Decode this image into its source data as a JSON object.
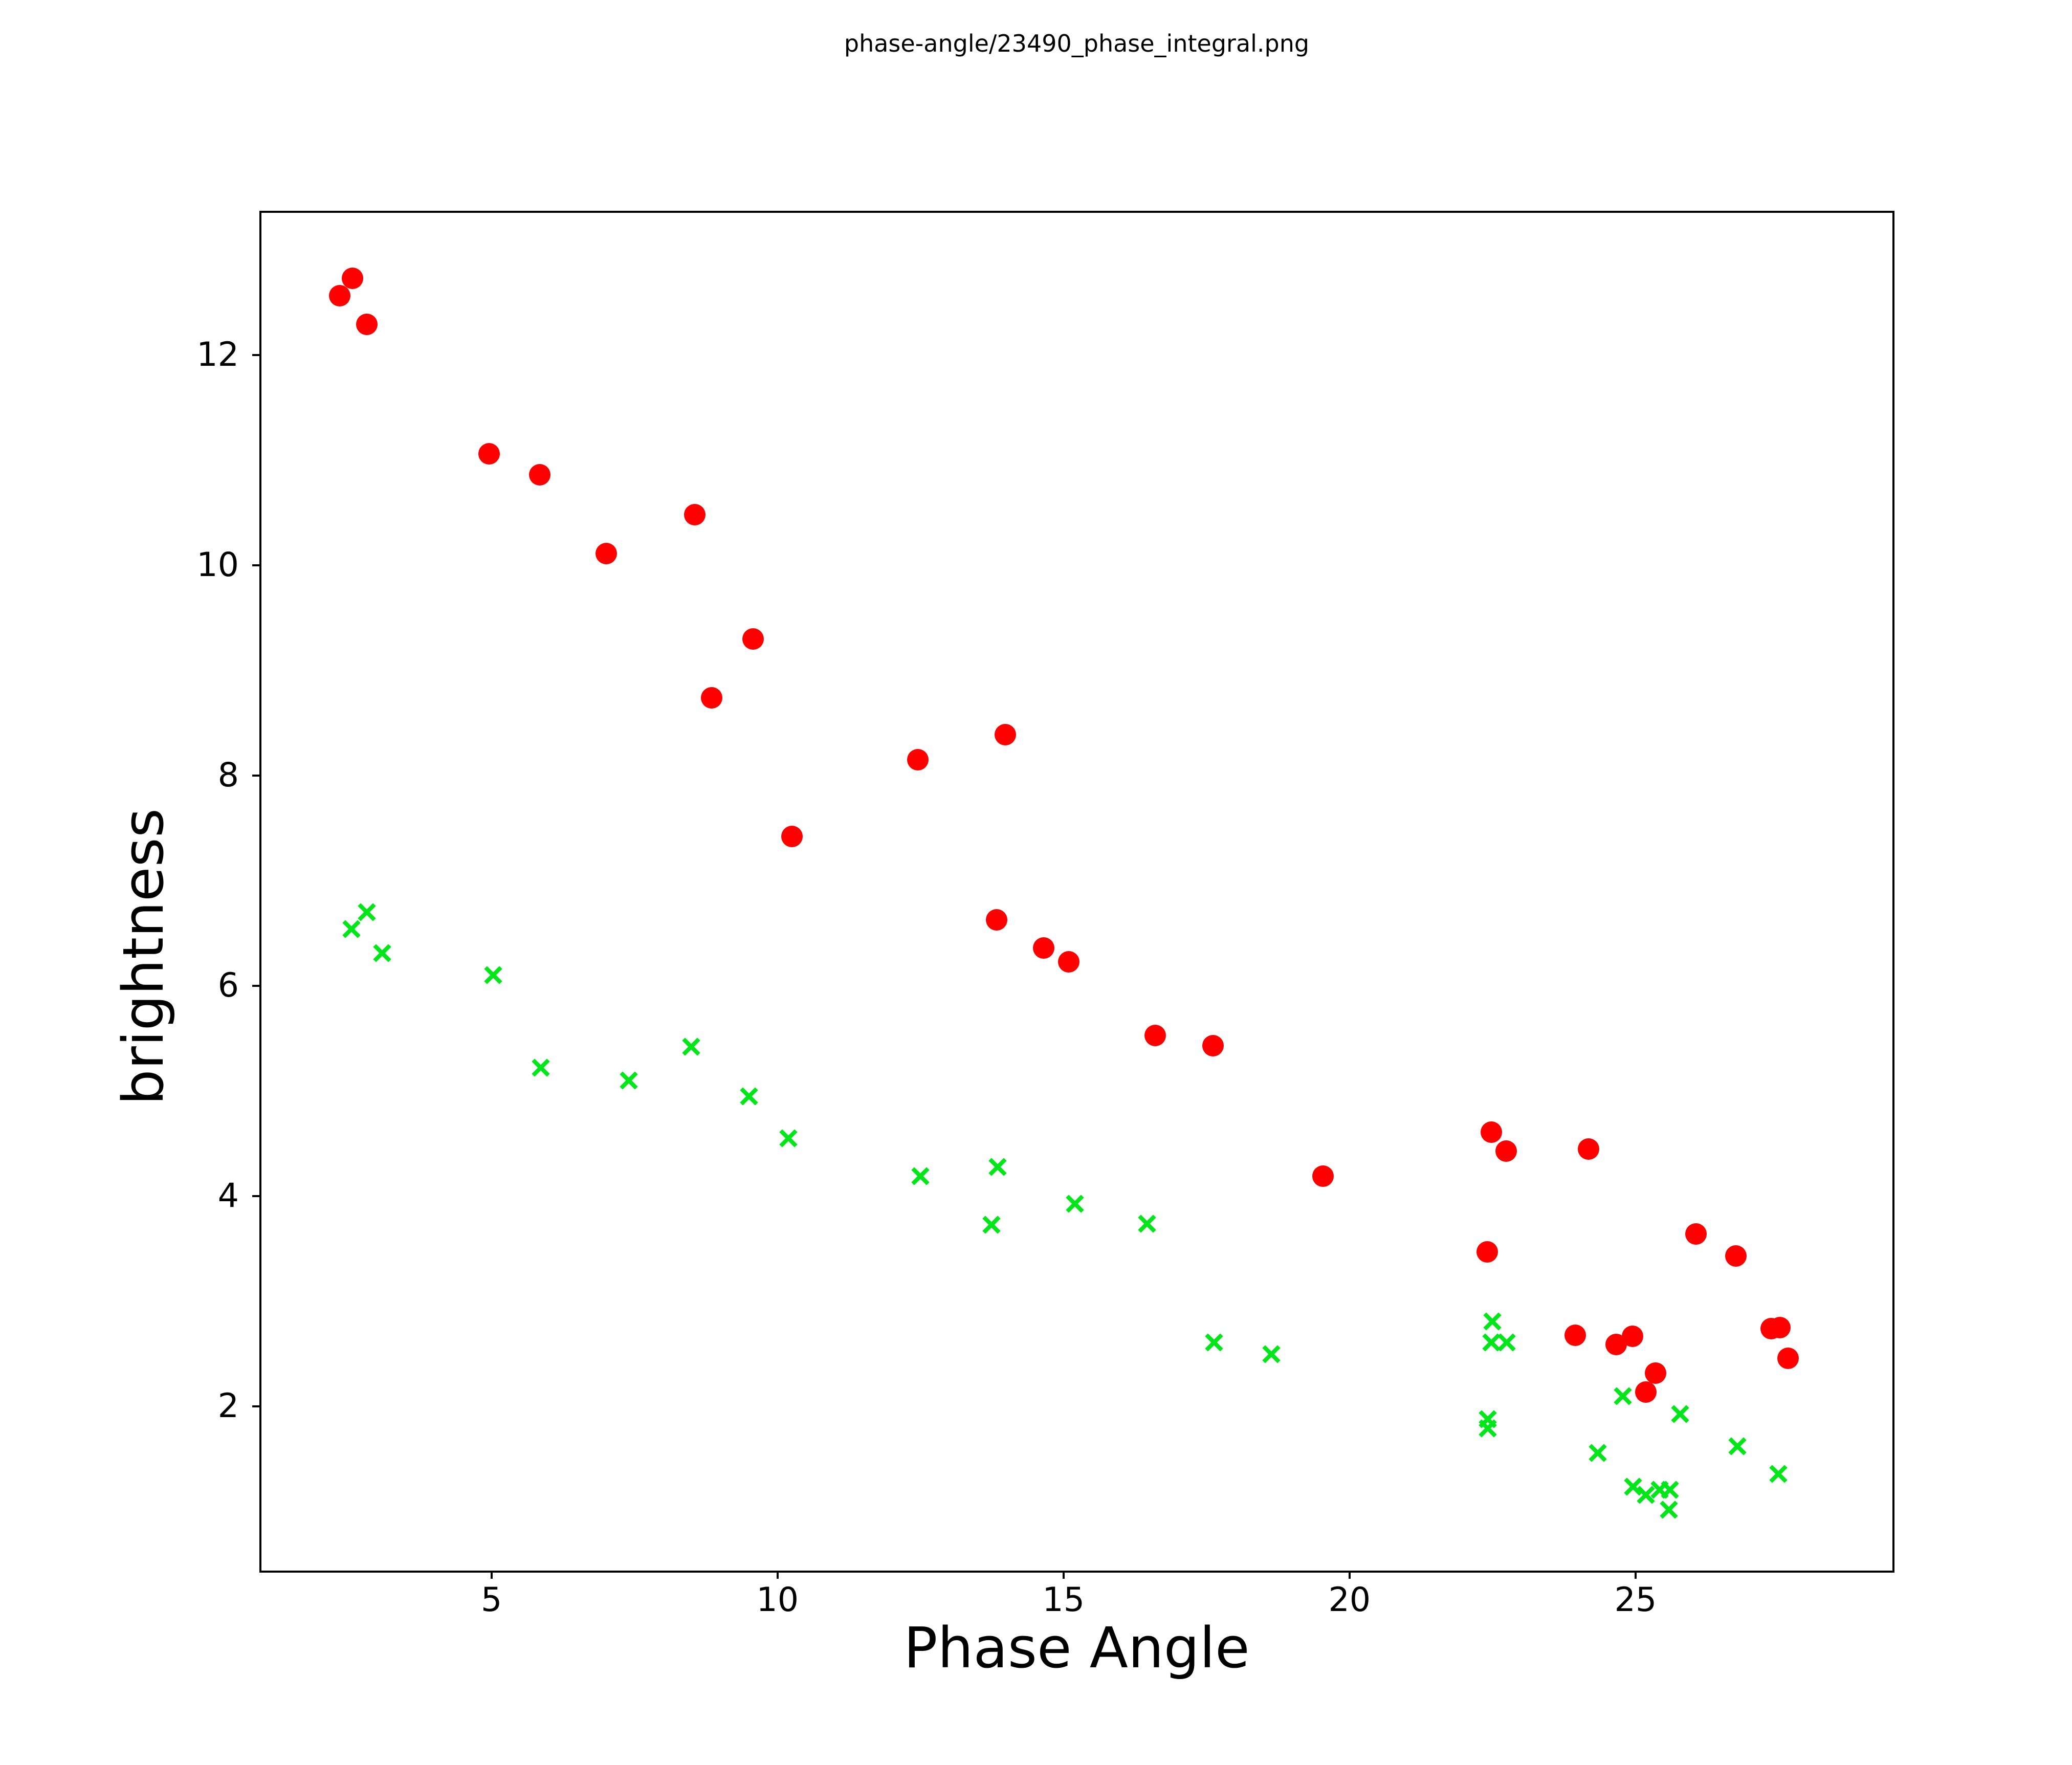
{
  "figure": {
    "background": "#ffffff",
    "text_color": "#000000"
  },
  "chart_data": {
    "type": "scatter",
    "title": "phase-angle/23490_phase_integral.png",
    "xlabel": "Phase Angle",
    "ylabel": "brightness",
    "xlim": [
      0.96,
      29.5
    ],
    "ylim": [
      0.44,
      13.36
    ],
    "xticks": [
      5,
      10,
      15,
      20,
      25
    ],
    "yticks": [
      2,
      4,
      6,
      8,
      10,
      12
    ],
    "grid": false,
    "legend": false,
    "series": [
      {
        "name": "red-circles",
        "marker": "circle",
        "color": "#ff0000",
        "marker_size": 42,
        "points": [
          [
            2.35,
            12.56
          ],
          [
            2.57,
            12.73
          ],
          [
            2.82,
            12.29
          ],
          [
            4.96,
            11.06
          ],
          [
            5.84,
            10.86
          ],
          [
            7.01,
            10.11
          ],
          [
            8.55,
            10.48
          ],
          [
            8.85,
            8.74
          ],
          [
            9.57,
            9.3
          ],
          [
            10.25,
            7.42
          ],
          [
            12.45,
            8.15
          ],
          [
            13.98,
            8.39
          ],
          [
            13.83,
            6.63
          ],
          [
            14.65,
            6.36
          ],
          [
            15.09,
            6.23
          ],
          [
            16.6,
            5.53
          ],
          [
            17.61,
            5.43
          ],
          [
            19.54,
            4.19
          ],
          [
            22.48,
            4.61
          ],
          [
            22.74,
            4.43
          ],
          [
            24.18,
            4.45
          ],
          [
            22.41,
            3.47
          ],
          [
            26.06,
            3.64
          ],
          [
            26.75,
            3.43
          ],
          [
            23.95,
            2.68
          ],
          [
            24.66,
            2.59
          ],
          [
            24.95,
            2.67
          ],
          [
            25.35,
            2.32
          ],
          [
            25.18,
            2.14
          ],
          [
            27.37,
            2.74
          ],
          [
            27.52,
            2.75
          ],
          [
            27.67,
            2.46
          ]
        ]
      },
      {
        "name": "green-crosses",
        "marker": "x",
        "color": "#00e619",
        "marker_size": 30,
        "stroke_width": 8,
        "points": [
          [
            2.55,
            6.54
          ],
          [
            2.82,
            6.7
          ],
          [
            3.09,
            6.31
          ],
          [
            5.03,
            6.1
          ],
          [
            5.86,
            5.22
          ],
          [
            7.4,
            5.1
          ],
          [
            8.49,
            5.42
          ],
          [
            9.5,
            4.95
          ],
          [
            10.19,
            4.55
          ],
          [
            12.5,
            4.19
          ],
          [
            13.85,
            4.28
          ],
          [
            13.74,
            3.73
          ],
          [
            15.2,
            3.93
          ],
          [
            16.46,
            3.74
          ],
          [
            17.63,
            2.61
          ],
          [
            18.63,
            2.5
          ],
          [
            22.5,
            2.81
          ],
          [
            22.48,
            2.61
          ],
          [
            22.75,
            2.61
          ],
          [
            22.42,
            1.88
          ],
          [
            22.42,
            1.79
          ],
          [
            24.78,
            2.1
          ],
          [
            25.78,
            1.93
          ],
          [
            24.34,
            1.56
          ],
          [
            26.78,
            1.62
          ],
          [
            27.5,
            1.36
          ],
          [
            24.96,
            1.24
          ],
          [
            25.18,
            1.16
          ],
          [
            25.42,
            1.21
          ],
          [
            25.6,
            1.21
          ],
          [
            25.58,
            1.02
          ]
        ]
      }
    ]
  }
}
